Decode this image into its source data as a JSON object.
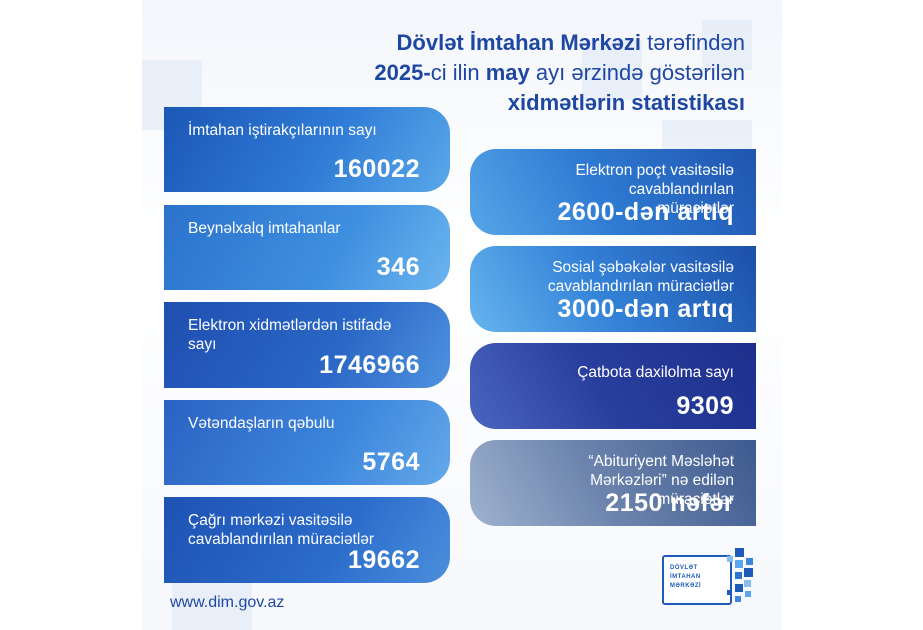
{
  "title": {
    "line1_bold": "Dövlət İmtahan Mərkəzi",
    "line1_rest": " tərəfindən",
    "line2_bold1": "2025-",
    "line2_reg1": "ci ilin ",
    "line2_bold2": "may",
    "line2_reg2": " ayı ərzində göstərilən",
    "line3_bold": "xidmətlərin statistikası"
  },
  "left_cards": [
    {
      "label": "İmtahan iştirakçılarının sayı",
      "value": "160022"
    },
    {
      "label": "Beynəlxalq imtahanlar",
      "value": "346"
    },
    {
      "label": "Elektron xidmətlərdən istifadə sayı",
      "value": "1746966"
    },
    {
      "label": "Vətəndaşların qəbulu",
      "value": "5764"
    },
    {
      "label": "Çağrı mərkəzi vasitəsilə cavablandırılan müraciətlər",
      "value": "19662"
    }
  ],
  "right_cards": [
    {
      "label": "Elektron poçt vasitəsilə cavablandırılan müraciətlər",
      "value": "2600-dən artıq"
    },
    {
      "label": "Sosial şəbəkələr vasitəsilə cavablandırılan müraciətlər",
      "value": "3000-dən artıq"
    },
    {
      "label": "Çatbota daxilolma sayı",
      "value": "9309"
    },
    {
      "label": "“Abituriyent Məsləhət Mərkəzləri” nə edilən müraciətlər",
      "value": "2150 nəfər"
    }
  ],
  "website": "www.dim.gov.az",
  "logo": {
    "line1": "DÖVLƏT",
    "line2": "İMTAHAN",
    "line3": "MƏRKƏZİ"
  },
  "colors": {
    "brand_blue": "#1e47a3"
  }
}
